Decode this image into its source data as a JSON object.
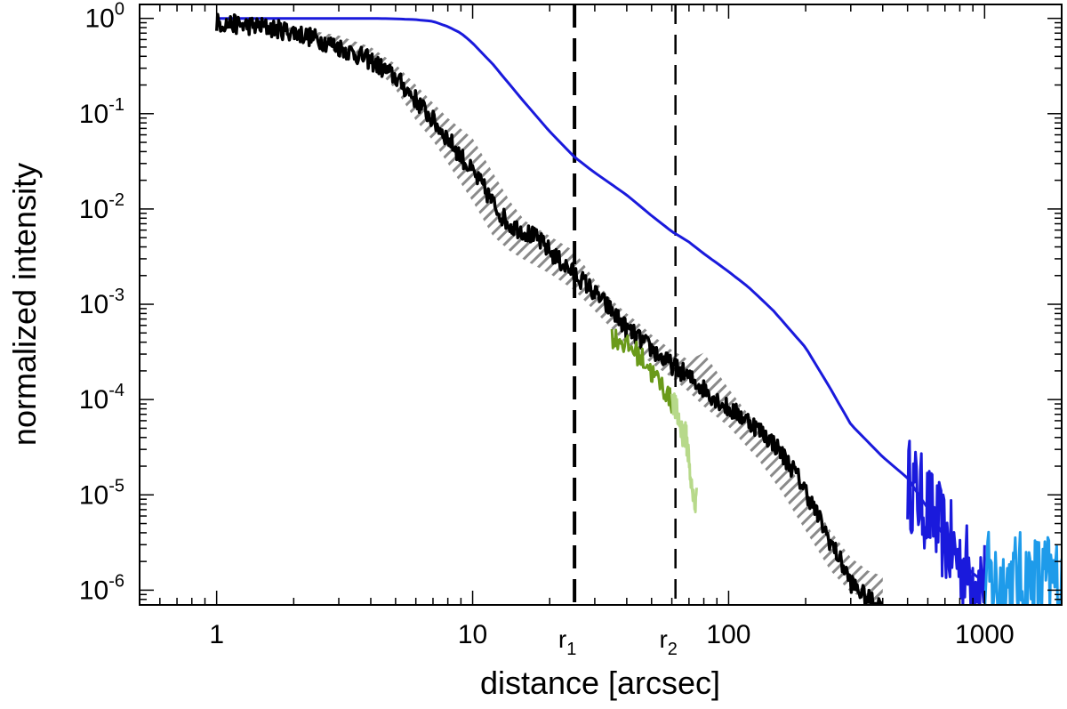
{
  "chart_data": {
    "type": "line",
    "xscale": "log",
    "yscale": "log",
    "xlabel": "distance [arcsec]",
    "ylabel": "normalized intensity",
    "xlim": [
      0.5,
      2000
    ],
    "ylim": [
      7e-07,
      1.4
    ],
    "x_ticks": [
      {
        "value": 1,
        "label": "1"
      },
      {
        "value": 10,
        "label": "10"
      },
      {
        "value": 100,
        "label": "100"
      },
      {
        "value": 1000,
        "label": "1000"
      }
    ],
    "y_ticks": [
      {
        "value": 1,
        "base": "10",
        "exp": "0"
      },
      {
        "value": 0.1,
        "base": "10",
        "exp": "-1"
      },
      {
        "value": 0.01,
        "base": "10",
        "exp": "-2"
      },
      {
        "value": 0.001,
        "base": "10",
        "exp": "-3"
      },
      {
        "value": 0.0001,
        "base": "10",
        "exp": "-4"
      },
      {
        "value": 1e-05,
        "base": "10",
        "exp": "-5"
      },
      {
        "value": 1e-06,
        "base": "10",
        "exp": "-6"
      }
    ],
    "vlines": [
      {
        "x": 25,
        "label_base": "r",
        "label_sub": "1",
        "style": "thick-dash"
      },
      {
        "x": 62,
        "label_base": "r",
        "label_sub": "2",
        "style": "thin-dash"
      }
    ],
    "band": {
      "name": "uncertainty band",
      "color": "#888888",
      "x": [
        1,
        2,
        3,
        4,
        5,
        6,
        7,
        8,
        10,
        12,
        14,
        16,
        20,
        25,
        30,
        35,
        40,
        45,
        50,
        60,
        70,
        80,
        100,
        130,
        160,
        200,
        250,
        300,
        350,
        400
      ],
      "lower": [
        0.88,
        0.72,
        0.52,
        0.34,
        0.18,
        0.085,
        0.052,
        0.03,
        0.012,
        0.0052,
        0.0036,
        0.0029,
        0.0021,
        0.0014,
        0.00085,
        0.00055,
        0.00038,
        0.0003,
        0.00024,
        0.00017,
        0.00012,
        8.5e-05,
        5.2e-05,
        2.4e-05,
        1.1e-05,
        4.2e-06,
        1.6e-06,
        9.5e-07,
        8e-07,
        7e-07
      ],
      "upper": [
        0.93,
        0.8,
        0.66,
        0.5,
        0.33,
        0.2,
        0.13,
        0.09,
        0.055,
        0.024,
        0.012,
        0.0075,
        0.0052,
        0.0036,
        0.0018,
        0.0011,
        0.0008,
        0.00062,
        0.00048,
        0.00033,
        0.00026,
        0.00031,
        0.00013,
        5.2e-05,
        2.6e-05,
        1.1e-05,
        4.2e-06,
        2.2e-06,
        1.6e-06,
        1.4e-06
      ]
    },
    "series": [
      {
        "name": "blue profile",
        "color": "#1a1adc",
        "x": [
          1,
          2,
          3,
          4,
          5,
          6,
          7,
          8,
          9,
          10,
          12,
          14,
          16,
          18,
          20,
          25,
          30,
          35,
          40,
          50,
          60,
          70,
          80,
          100,
          120,
          150,
          200,
          250,
          300,
          400,
          500,
          600,
          700,
          800,
          900,
          1000
        ],
        "y": [
          1.0,
          1.0,
          1.0,
          1.0,
          0.99,
          0.97,
          0.93,
          0.82,
          0.7,
          0.55,
          0.33,
          0.2,
          0.13,
          0.09,
          0.065,
          0.035,
          0.024,
          0.018,
          0.014,
          0.0085,
          0.0058,
          0.0045,
          0.0034,
          0.0022,
          0.0015,
          0.00085,
          0.00035,
          0.00013,
          5.5e-05,
          2.5e-05,
          1.5e-05,
          7.2e-06,
          3.5e-06,
          2e-06,
          1.5e-06,
          1.2e-06
        ],
        "noise": 0
      },
      {
        "name": "blue profile noisy tail",
        "color": "#1a1adc",
        "x": [
          500,
          600,
          700,
          800,
          900,
          1000
        ],
        "y": [
          1.4e-05,
          7.2e-06,
          3.5e-06,
          2e-06,
          1.5e-06,
          1.2e-06
        ],
        "noise": 0.5
      },
      {
        "name": "light blue tail",
        "color": "#1e9bea",
        "x": [
          1000,
          1200,
          1400,
          1600,
          1800,
          2000
        ],
        "y": [
          1.2e-06,
          1.2e-06,
          1.2e-06,
          1.2e-06,
          1.2e-06,
          1.2e-06
        ],
        "noise": 0.55
      },
      {
        "name": "black profile",
        "color": "#000000",
        "x": [
          1,
          1.5,
          2,
          2.5,
          3,
          3.5,
          4,
          5,
          6,
          7,
          8,
          9,
          10,
          11,
          12,
          13,
          14,
          16,
          18,
          20,
          22,
          25,
          28,
          30,
          32,
          35,
          38,
          40,
          45,
          50,
          55,
          60,
          65,
          70,
          80,
          90,
          100,
          120,
          150,
          180,
          200,
          220,
          250,
          280,
          300,
          350,
          400
        ],
        "y": [
          0.9,
          0.82,
          0.72,
          0.6,
          0.5,
          0.42,
          0.36,
          0.24,
          0.14,
          0.085,
          0.055,
          0.036,
          0.024,
          0.017,
          0.0115,
          0.0085,
          0.0068,
          0.0058,
          0.0048,
          0.0036,
          0.0028,
          0.0021,
          0.0016,
          0.0013,
          0.0011,
          0.00085,
          0.00065,
          0.00055,
          0.00043,
          0.00034,
          0.00027,
          0.00023,
          0.0002,
          0.00017,
          0.00013,
          0.0001,
          8e-05,
          6e-05,
          3.5e-05,
          1.8e-05,
          1.1e-05,
          6.5e-06,
          3.2e-06,
          1.8e-06,
          1.2e-06,
          8e-07,
          7e-07
        ],
        "noise": 0.1
      },
      {
        "name": "green profile",
        "color": "#6a9a1a",
        "x": [
          35,
          38,
          40,
          43,
          45,
          48,
          50,
          53,
          55,
          58,
          60
        ],
        "y": [
          0.00045,
          0.00042,
          0.00036,
          0.00033,
          0.00028,
          0.00024,
          0.00019,
          0.00016,
          0.00014,
          0.00011,
          9e-05
        ],
        "noise": 0.12
      },
      {
        "name": "light green profile",
        "color": "#b7d98a",
        "x": [
          60,
          62,
          64,
          66,
          68,
          70,
          72,
          74,
          75
        ],
        "y": [
          0.00011,
          8e-05,
          6e-05,
          4.5e-05,
          4.2e-05,
          2.5e-05,
          1e-05,
          8e-06,
          9e-06
        ],
        "noise": 0.15
      }
    ]
  }
}
